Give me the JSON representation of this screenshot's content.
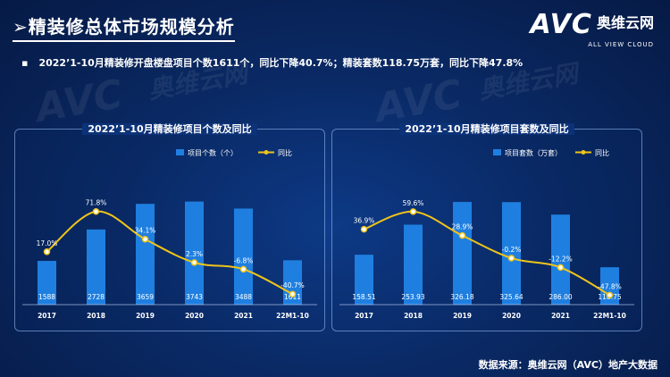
{
  "header": {
    "title": "➢精装修总体市场规模分析",
    "brand": "AVC",
    "brand_cn": "奥维云网",
    "brand_en": "ALL VIEW CLOUD"
  },
  "summary": {
    "bullet": "▪",
    "text": "2022’1-10月精装修开盘楼盘项目个数1611个，同比下降40.7%；精装套数118.75万套，同比下降47.8%"
  },
  "watermark": {
    "brand": "AVC",
    "cn": "奥维云网",
    "en": "ALL VIEW CLOUD"
  },
  "colors": {
    "bar": "#1f7fe0",
    "line": "#f0c419",
    "text": "#ffffff"
  },
  "source": "数据来源：奥维云网（AVC）地产大数据",
  "chart_data": [
    {
      "type": "bar",
      "title": "2022’1-10月精装修项目个数及同比",
      "categories": [
        "2017",
        "2018",
        "2019",
        "2020",
        "2021",
        "22M1-10"
      ],
      "series": [
        {
          "name": "项目个数（个）",
          "type": "bar",
          "values": [
            1588,
            2728,
            3659,
            3743,
            3488,
            1611
          ],
          "labels": [
            "1588",
            "2728",
            "3659",
            "3743",
            "3488",
            "1611"
          ]
        },
        {
          "name": "同比",
          "type": "line",
          "values": [
            17.0,
            71.8,
            34.1,
            2.3,
            -6.8,
            -40.7
          ],
          "labels": [
            "17.0%",
            "71.8%",
            "34.1%",
            "2.3%",
            "-6.8%",
            "-40.7%"
          ]
        }
      ],
      "bar_ylim": [
        0,
        4800
      ],
      "line_ylim": [
        -55,
        125
      ],
      "legend_position": "top"
    },
    {
      "type": "bar",
      "title": "2022’1-10月精装修项目套数及同比",
      "categories": [
        "2017",
        "2018",
        "2019",
        "2020",
        "2021",
        "22M1-10"
      ],
      "series": [
        {
          "name": "项目套数（万套）",
          "type": "bar",
          "values": [
            158.51,
            253.93,
            326.18,
            325.64,
            286.0,
            118.75
          ],
          "labels": [
            "158.51",
            "253.93",
            "326.18",
            "325.64",
            "286.00",
            "118.75"
          ]
        },
        {
          "name": "同比",
          "type": "line",
          "values": [
            36.9,
            59.6,
            28.9,
            -0.2,
            -12.2,
            -47.8
          ],
          "labels": [
            "36.9%",
            "59.6%",
            "28.9%",
            "-0.2%",
            "-12.2%",
            "-47.8%"
          ]
        }
      ],
      "bar_ylim": [
        0,
        420
      ],
      "line_ylim": [
        -60,
        110
      ],
      "legend_position": "top"
    }
  ]
}
